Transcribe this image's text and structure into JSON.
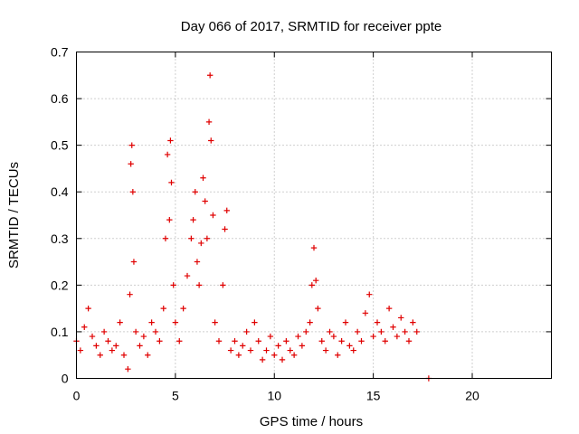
{
  "chart_data": {
    "type": "scatter",
    "title": "Day 066 of 2017, SRMTID for receiver ppte",
    "xlabel": "GPS time / hours",
    "ylabel": "SRMTID / TECUs",
    "xlim": [
      0,
      24
    ],
    "ylim": [
      0,
      0.7
    ],
    "xticks": [
      0,
      5,
      10,
      15,
      20
    ],
    "yticks": [
      0,
      0.1,
      0.2,
      0.3,
      0.4,
      0.5,
      0.6,
      0.7
    ],
    "xtick_labels": [
      "0",
      "5",
      "10",
      "15",
      "20"
    ],
    "ytick_labels": [
      "0",
      "0.1",
      "0.2",
      "0.3",
      "0.4",
      "0.5",
      "0.6",
      "0.7"
    ],
    "grid": true,
    "marker": "+",
    "color": "#e00000",
    "x": [
      0.0,
      0.2,
      0.4,
      0.6,
      0.8,
      1.0,
      1.2,
      1.4,
      1.6,
      1.8,
      2.0,
      2.2,
      2.4,
      2.6,
      2.7,
      2.75,
      2.8,
      2.85,
      2.9,
      3.0,
      3.2,
      3.4,
      3.6,
      3.8,
      4.0,
      4.2,
      4.4,
      4.5,
      4.6,
      4.7,
      4.75,
      4.8,
      4.9,
      5.0,
      5.2,
      5.4,
      5.6,
      5.8,
      5.9,
      6.0,
      6.1,
      6.2,
      6.3,
      6.4,
      6.5,
      6.6,
      6.7,
      6.75,
      6.8,
      6.9,
      7.0,
      7.2,
      7.4,
      7.5,
      7.6,
      7.8,
      8.0,
      8.2,
      8.4,
      8.6,
      8.8,
      9.0,
      9.2,
      9.4,
      9.6,
      9.8,
      10.0,
      10.2,
      10.4,
      10.6,
      10.8,
      11.0,
      11.2,
      11.4,
      11.6,
      11.8,
      11.9,
      12.0,
      12.1,
      12.2,
      12.4,
      12.6,
      12.8,
      13.0,
      13.2,
      13.4,
      13.6,
      13.8,
      14.0,
      14.2,
      14.4,
      14.6,
      14.8,
      15.0,
      15.2,
      15.4,
      15.6,
      15.8,
      16.0,
      16.2,
      16.4,
      16.6,
      16.8,
      17.0,
      17.2,
      17.8
    ],
    "y": [
      0.08,
      0.06,
      0.11,
      0.15,
      0.09,
      0.07,
      0.05,
      0.1,
      0.08,
      0.06,
      0.07,
      0.12,
      0.05,
      0.02,
      0.18,
      0.46,
      0.5,
      0.4,
      0.25,
      0.1,
      0.07,
      0.09,
      0.05,
      0.12,
      0.1,
      0.08,
      0.15,
      0.3,
      0.48,
      0.34,
      0.51,
      0.42,
      0.2,
      0.12,
      0.08,
      0.15,
      0.22,
      0.3,
      0.34,
      0.4,
      0.25,
      0.2,
      0.29,
      0.43,
      0.38,
      0.3,
      0.55,
      0.65,
      0.51,
      0.35,
      0.12,
      0.08,
      0.2,
      0.32,
      0.36,
      0.06,
      0.08,
      0.05,
      0.07,
      0.1,
      0.06,
      0.12,
      0.08,
      0.04,
      0.06,
      0.09,
      0.05,
      0.07,
      0.04,
      0.08,
      0.06,
      0.05,
      0.09,
      0.07,
      0.1,
      0.12,
      0.2,
      0.28,
      0.21,
      0.15,
      0.08,
      0.06,
      0.1,
      0.09,
      0.05,
      0.08,
      0.12,
      0.07,
      0.06,
      0.1,
      0.08,
      0.14,
      0.18,
      0.09,
      0.12,
      0.1,
      0.08,
      0.15,
      0.11,
      0.09,
      0.13,
      0.1,
      0.08,
      0.12,
      0.1,
      0.0
    ]
  }
}
